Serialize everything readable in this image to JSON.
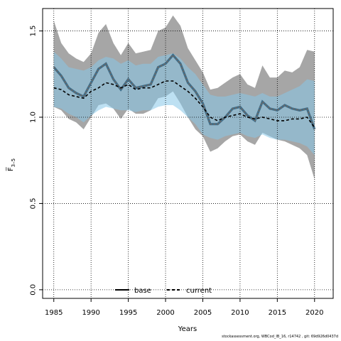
{
  "chart_data": {
    "type": "line",
    "xlabel": "Years",
    "ylabel": "F̅",
    "ylabel_sub": "3–5",
    "xlim": [
      1983.5,
      2022.5
    ],
    "ylim": [
      -0.05,
      1.63
    ],
    "x_ticks": [
      1985,
      1990,
      1995,
      2000,
      2005,
      2010,
      2015,
      2020
    ],
    "y_ticks": [
      0.0,
      0.5,
      1.0,
      1.5
    ],
    "y_tick_labels": [
      "0.0",
      "0.5",
      "1.0",
      "1.5"
    ],
    "grid": true,
    "legend_position": "bottom-center",
    "x": [
      1985,
      1986,
      1987,
      1988,
      1989,
      1990,
      1991,
      1992,
      1993,
      1994,
      1995,
      1996,
      1997,
      1998,
      1999,
      2000,
      2001,
      2002,
      2003,
      2004,
      2005,
      2006,
      2007,
      2008,
      2009,
      2010,
      2011,
      2012,
      2013,
      2014,
      2015,
      2016,
      2017,
      2018,
      2019,
      2020
    ],
    "series": [
      {
        "name": "base",
        "color": "#000000",
        "dash": "solid",
        "values": [
          1.29,
          1.24,
          1.17,
          1.14,
          1.12,
          1.2,
          1.28,
          1.31,
          1.22,
          1.16,
          1.22,
          1.17,
          1.18,
          1.19,
          1.29,
          1.31,
          1.36,
          1.31,
          1.2,
          1.15,
          1.08,
          0.96,
          0.96,
          1.0,
          1.05,
          1.06,
          1.01,
          0.98,
          1.09,
          1.05,
          1.04,
          1.07,
          1.05,
          1.04,
          1.05,
          0.93
        ],
        "lower": [
          1.06,
          1.04,
          0.99,
          0.97,
          0.93,
          1.0,
          1.07,
          1.08,
          1.05,
          0.99,
          1.05,
          1.02,
          1.02,
          1.04,
          1.11,
          1.12,
          1.15,
          1.08,
          1.0,
          0.93,
          0.89,
          0.8,
          0.82,
          0.86,
          0.89,
          0.9,
          0.86,
          0.84,
          0.91,
          0.89,
          0.87,
          0.86,
          0.84,
          0.82,
          0.78,
          0.64
        ],
        "upper": [
          1.56,
          1.43,
          1.37,
          1.34,
          1.32,
          1.37,
          1.49,
          1.54,
          1.43,
          1.36,
          1.43,
          1.37,
          1.38,
          1.39,
          1.5,
          1.52,
          1.59,
          1.53,
          1.4,
          1.33,
          1.26,
          1.16,
          1.17,
          1.2,
          1.23,
          1.25,
          1.19,
          1.17,
          1.3,
          1.23,
          1.23,
          1.27,
          1.26,
          1.29,
          1.39,
          1.38
        ],
        "band_color": "#a6a6a6"
      },
      {
        "name": "current",
        "color": "#000000",
        "dash": "dashed",
        "values": [
          1.17,
          1.16,
          1.13,
          1.12,
          1.11,
          1.15,
          1.17,
          1.2,
          1.19,
          1.17,
          1.19,
          1.16,
          1.17,
          1.17,
          1.19,
          1.21,
          1.21,
          1.18,
          1.15,
          1.11,
          1.06,
          1.0,
          0.98,
          1.0,
          1.01,
          1.02,
          1.0,
          0.99,
          1.0,
          0.99,
          0.98,
          0.98,
          0.99,
          0.99,
          1.0,
          0.94
        ],
        "lower": [
          1.06,
          1.05,
          1.02,
          1.0,
          0.97,
          1.01,
          1.04,
          1.06,
          1.05,
          1.04,
          1.04,
          1.03,
          1.04,
          1.04,
          1.06,
          1.07,
          1.07,
          1.04,
          1.0,
          0.96,
          0.9,
          0.88,
          0.87,
          0.89,
          0.9,
          0.91,
          0.89,
          0.88,
          0.9,
          0.88,
          0.87,
          0.87,
          0.86,
          0.85,
          0.83,
          0.78
        ],
        "upper": [
          1.38,
          1.34,
          1.29,
          1.28,
          1.27,
          1.29,
          1.33,
          1.35,
          1.34,
          1.31,
          1.33,
          1.3,
          1.31,
          1.31,
          1.35,
          1.36,
          1.37,
          1.34,
          1.29,
          1.25,
          1.19,
          1.13,
          1.12,
          1.12,
          1.13,
          1.14,
          1.13,
          1.12,
          1.14,
          1.12,
          1.12,
          1.14,
          1.16,
          1.18,
          1.22,
          1.21
        ],
        "band_color": "#87c7e8"
      }
    ]
  },
  "footer": {
    "text": "stockassessment.org, WBCod_IB_16, r14742 , git: 69d926d0437d"
  }
}
